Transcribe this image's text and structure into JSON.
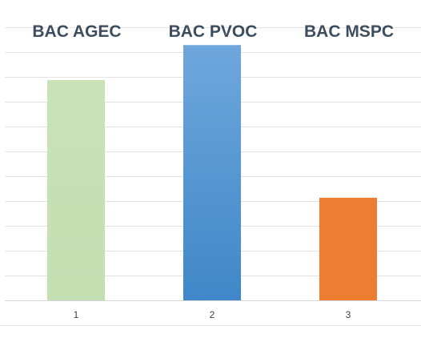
{
  "chart_data": {
    "type": "bar",
    "title": "",
    "xlabel": "",
    "ylabel": "",
    "x_ticks": [
      "1",
      "2",
      "3"
    ],
    "categories": [
      "BAC AGEC",
      "BAC PVOC",
      "BAC MSPC"
    ],
    "values": [
      8.8,
      10.2,
      4.1
    ],
    "ylim": [
      0,
      12
    ],
    "grid": true,
    "legend": "none",
    "colors": [
      "#c5e0b4",
      "#5b9bd5",
      "#ed7d31"
    ]
  }
}
